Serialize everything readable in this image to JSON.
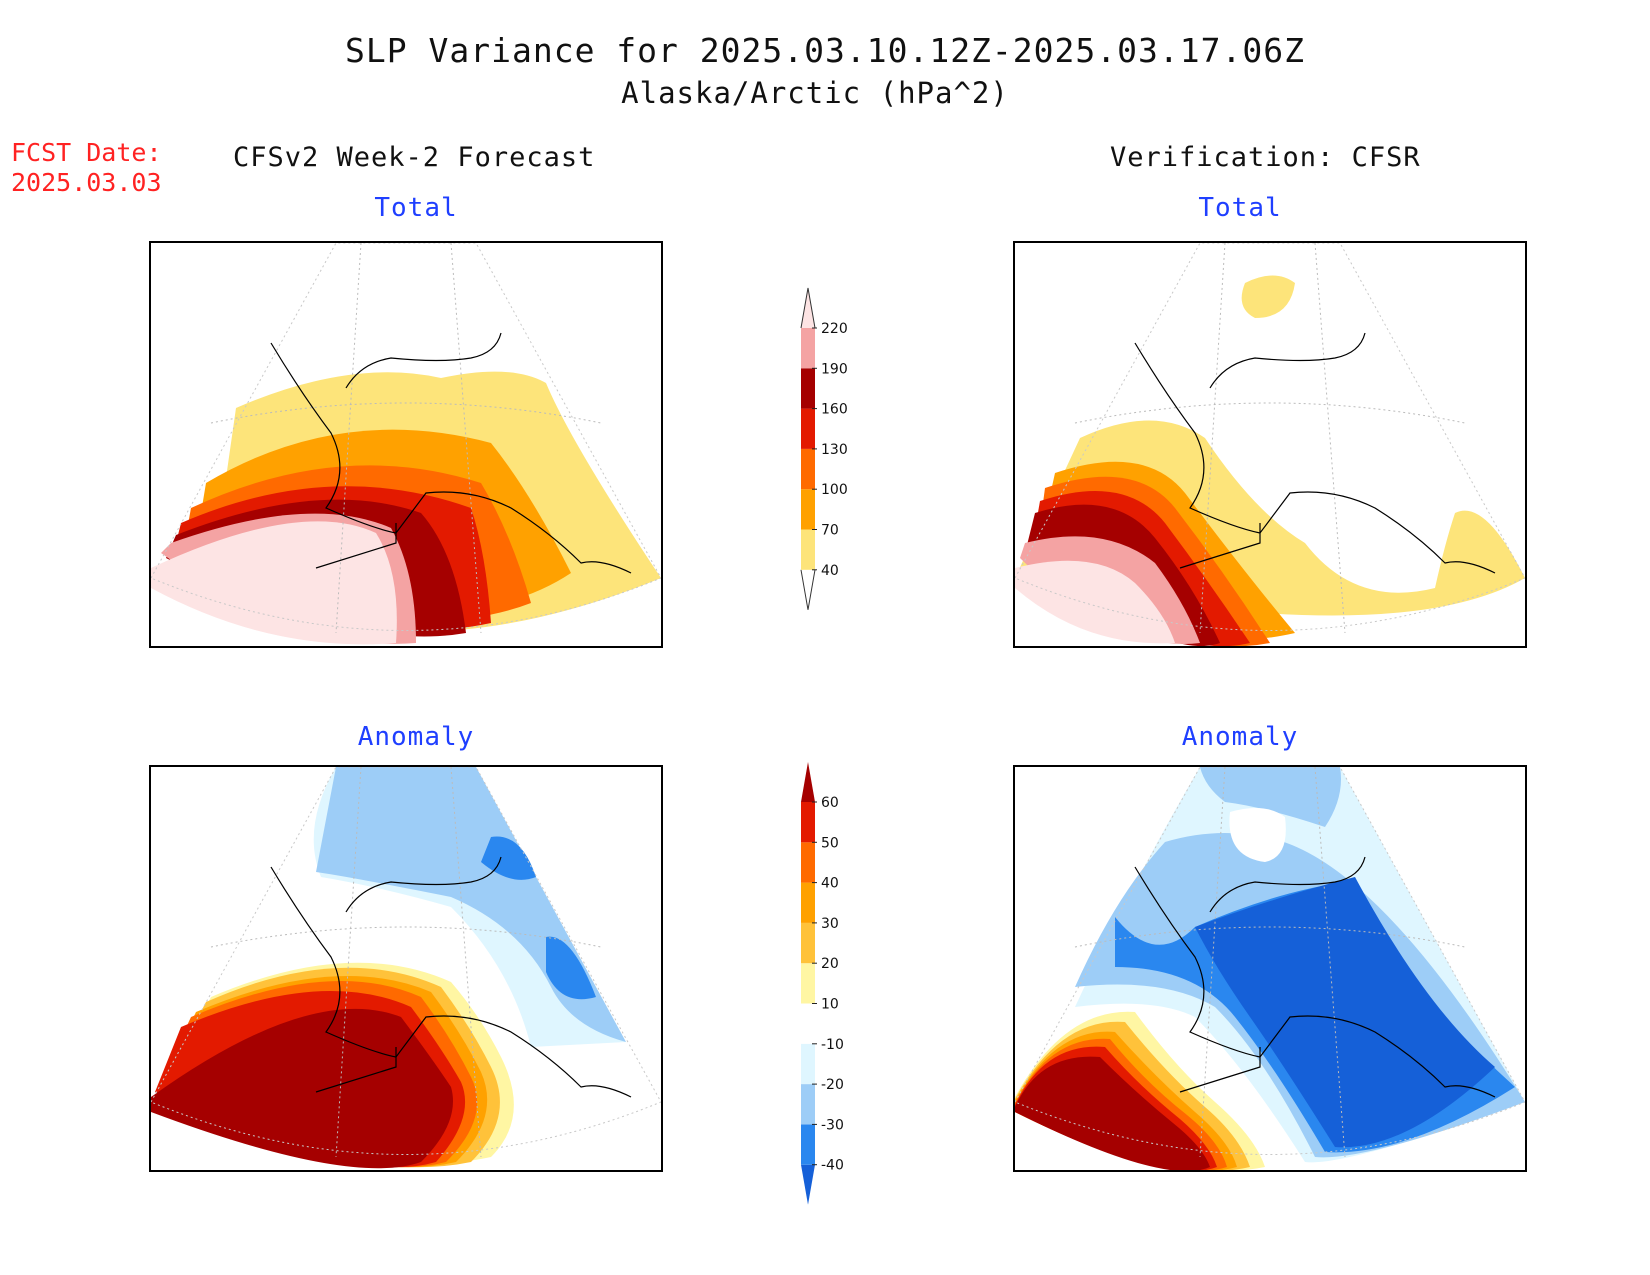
{
  "header": {
    "title": "SLP Variance for 2025.03.10.12Z-2025.03.17.06Z",
    "subtitle": "Alaska/Arctic (hPa^2)",
    "fcst_label": "FCST Date:",
    "fcst_date": "2025.03.03"
  },
  "columns": {
    "left": "CFSv2 Week-2 Forecast",
    "right": "Verification: CFSR"
  },
  "panels": {
    "fcst_total": "Total",
    "verif_total": "Total",
    "fcst_anomaly": "Anomaly",
    "verif_anomaly": "Anomaly"
  },
  "colorbars": {
    "total": {
      "labels": [
        "40",
        "70",
        "100",
        "130",
        "160",
        "190",
        "220"
      ],
      "colors": [
        "#fde47a",
        "#ffa100",
        "#ff6a00",
        "#e31a00",
        "#a50000",
        "#f4a3a3",
        "#fde4e4"
      ]
    },
    "anomaly": {
      "labels": [
        "-40",
        "-30",
        "-20",
        "-10",
        "10",
        "20",
        "30",
        "40",
        "50",
        "60"
      ],
      "colors": [
        "#1560d8",
        "#2a87ef",
        "#9dcdf7",
        "#dff6ff",
        "#ffffff",
        "#fff6a3",
        "#ffc23a",
        "#ffa100",
        "#ff6a00",
        "#e31a00",
        "#a50000"
      ]
    }
  }
}
